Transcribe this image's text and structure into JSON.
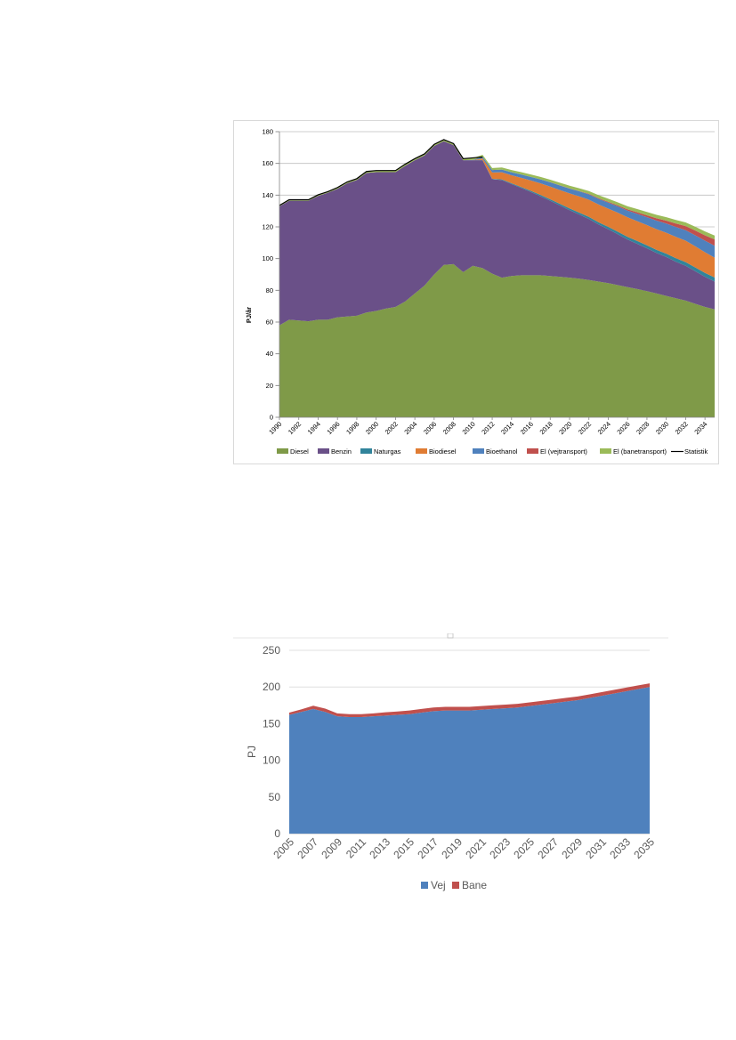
{
  "chart_data": [
    {
      "type": "area",
      "stacked": true,
      "title": "",
      "xlabel": "",
      "ylabel": "PJ/år",
      "ylim": [
        0,
        180
      ],
      "yticks": [
        "0",
        "20",
        "40",
        "60",
        "80",
        "100",
        "120",
        "140",
        "160",
        "180"
      ],
      "xticks": [
        "1990",
        "1992",
        "1994",
        "1996",
        "1998",
        "2000",
        "2002",
        "2004",
        "2006",
        "2008",
        "2010",
        "2012",
        "2014",
        "2016",
        "2018",
        "2020",
        "2022",
        "2024",
        "2026",
        "2028",
        "2030",
        "2032",
        "2034"
      ],
      "grid": true,
      "legend_position": "bottom",
      "x": [
        1990,
        1991,
        1992,
        1993,
        1994,
        1995,
        1996,
        1997,
        1998,
        1999,
        2000,
        2001,
        2002,
        2003,
        2004,
        2005,
        2006,
        2007,
        2008,
        2009,
        2010,
        2011,
        2012,
        2013,
        2014,
        2015,
        2016,
        2017,
        2018,
        2019,
        2020,
        2021,
        2022,
        2023,
        2024,
        2025,
        2026,
        2027,
        2028,
        2029,
        2030,
        2031,
        2032,
        2033,
        2034,
        2035
      ],
      "series": [
        {
          "name": "Diesel",
          "color": "#7f9a48",
          "values": [
            58,
            61.5,
            61,
            60.5,
            61.5,
            61.5,
            63,
            63.5,
            64,
            66,
            67,
            68.5,
            69.5,
            73,
            78,
            83,
            90,
            96,
            96.5,
            91.5,
            95.5,
            94,
            90.5,
            88,
            89,
            89.5,
            89.5,
            89.5,
            89,
            88.5,
            88,
            87.3,
            86.5,
            85.5,
            84.5,
            83.3,
            82,
            80.8,
            79.5,
            78,
            76.5,
            75,
            73.5,
            71.5,
            69.5,
            68
          ]
        },
        {
          "name": "Benzin",
          "color": "#6a5088",
          "values": [
            75,
            75,
            75.5,
            76,
            78,
            80,
            81,
            84,
            85.5,
            88,
            87.5,
            86,
            85,
            85.5,
            84,
            82,
            81,
            78,
            75,
            70.5,
            66.5,
            68,
            59.5,
            61.5,
            58,
            55,
            52.5,
            49.8,
            47.5,
            45,
            42.5,
            40.5,
            38.5,
            36,
            34,
            32,
            30,
            28.5,
            27,
            25.5,
            24.5,
            23,
            22,
            20.5,
            19,
            17.5
          ]
        },
        {
          "name": "Naturgas",
          "color": "#31849b",
          "values": [
            0,
            0,
            0,
            0,
            0,
            0,
            0,
            0,
            0,
            0,
            0,
            0,
            0,
            0,
            0,
            0,
            0,
            0,
            0,
            0,
            0,
            0.2,
            0.3,
            0.4,
            0.5,
            0.6,
            0.7,
            0.8,
            0.9,
            1.0,
            1.1,
            1.2,
            1.3,
            1.4,
            1.5,
            1.6,
            1.7,
            1.8,
            1.9,
            2.0,
            2.1,
            2.2,
            2.3,
            2.4,
            2.5,
            2.6
          ]
        },
        {
          "name": "Biodiesel",
          "color": "#e07c33",
          "values": [
            0,
            0,
            0,
            0,
            0,
            0,
            0,
            0,
            0,
            0,
            0,
            0,
            0,
            0,
            0,
            0,
            0,
            0,
            0,
            0,
            0,
            1,
            4,
            4.5,
            5,
            5.8,
            6.5,
            7.3,
            8,
            8.7,
            9.5,
            10.2,
            10.8,
            11.2,
            11.5,
            12,
            12.3,
            12.5,
            12.7,
            13,
            13.2,
            13.5,
            13.5,
            13.3,
            13,
            12.5
          ]
        },
        {
          "name": "Bioethanol",
          "color": "#4f81bd",
          "values": [
            0,
            0,
            0,
            0,
            0,
            0,
            0,
            0,
            0,
            0,
            0,
            0,
            0,
            0,
            0,
            0,
            0,
            0,
            0,
            0,
            0.2,
            1,
            1.5,
            1.7,
            1.9,
            2.1,
            2.3,
            2.5,
            2.7,
            2.9,
            3,
            3.2,
            3.4,
            3.6,
            3.8,
            4,
            4.2,
            4.6,
            5,
            5.4,
            5.8,
            6.2,
            6.6,
            7,
            7.3,
            7.5
          ]
        },
        {
          "name": "El (vejtransport)",
          "color": "#c0504d",
          "values": [
            0,
            0,
            0,
            0,
            0,
            0,
            0,
            0,
            0,
            0,
            0,
            0,
            0,
            0,
            0,
            0,
            0,
            0,
            0,
            0,
            0,
            0,
            0,
            0,
            0,
            0,
            0,
            0,
            0.05,
            0.1,
            0.15,
            0.2,
            0.3,
            0.4,
            0.5,
            0.6,
            0.8,
            1.0,
            1.2,
            1.5,
            1.8,
            2.2,
            2.6,
            3.0,
            3.4,
            4.0
          ]
        },
        {
          "name": "El (banetransport)",
          "color": "#9bbb59",
          "values": [
            0.5,
            0.6,
            0.6,
            0.6,
            0.7,
            0.7,
            0.8,
            0.8,
            0.9,
            0.9,
            1.0,
            1.0,
            1.0,
            1.0,
            1.0,
            1.0,
            1.0,
            1.0,
            1.0,
            1.0,
            1.1,
            1.2,
            1.3,
            1.35,
            1.4,
            1.45,
            1.5,
            1.55,
            1.6,
            1.65,
            1.7,
            1.75,
            1.8,
            1.85,
            1.9,
            1.95,
            2.0,
            2.05,
            2.1,
            2.15,
            2.2,
            2.25,
            2.3,
            2.35,
            2.4,
            2.4
          ]
        }
      ],
      "statistik": {
        "name": "Statistik",
        "color": "#000000",
        "x": [
          1990,
          1991,
          1992,
          1993,
          1994,
          1995,
          1996,
          1997,
          1998,
          1999,
          2000,
          2001,
          2002,
          2003,
          2004,
          2005,
          2006,
          2007,
          2008,
          2009,
          2010,
          2011
        ],
        "values": [
          133.5,
          137.1,
          137.1,
          137.1,
          140.2,
          142.2,
          144.8,
          148.3,
          150.4,
          154.9,
          155.5,
          155.5,
          155.5,
          159.5,
          163,
          166,
          172,
          175,
          172.5,
          163,
          163.5,
          164
        ]
      }
    },
    {
      "type": "area",
      "stacked": true,
      "title": "",
      "xlabel": "",
      "ylabel": "PJ",
      "ylim": [
        0,
        250
      ],
      "yticks": [
        "0",
        "50",
        "100",
        "150",
        "200",
        "250"
      ],
      "xticks": [
        "2005",
        "2007",
        "2009",
        "2011",
        "2013",
        "2015",
        "2017",
        "2019",
        "2021",
        "2023",
        "2025",
        "2027",
        "2029",
        "2031",
        "2033",
        "2035"
      ],
      "grid": true,
      "legend_position": "bottom",
      "x": [
        2005,
        2006,
        2007,
        2008,
        2009,
        2010,
        2011,
        2012,
        2013,
        2014,
        2015,
        2016,
        2017,
        2018,
        2019,
        2020,
        2021,
        2022,
        2023,
        2024,
        2025,
        2026,
        2027,
        2028,
        2029,
        2030,
        2031,
        2032,
        2033,
        2034,
        2035
      ],
      "series": [
        {
          "name": "Vej",
          "color": "#4f81bd",
          "values": [
            162,
            166,
            170,
            166,
            160,
            159,
            159,
            160,
            161,
            162,
            163,
            165,
            167,
            168,
            168,
            168,
            169,
            170,
            171,
            172,
            174,
            176,
            178,
            180,
            182,
            185,
            188,
            191,
            194,
            197,
            200
          ]
        },
        {
          "name": "Bane",
          "color": "#c0504d",
          "values": [
            3,
            3.5,
            4.5,
            4.5,
            4,
            4,
            4,
            4,
            4.5,
            4.5,
            5,
            5,
            5,
            5,
            5,
            5,
            5,
            5,
            5,
            5,
            5,
            5,
            5,
            5,
            5,
            5,
            5,
            5,
            5,
            5,
            5
          ]
        }
      ]
    }
  ]
}
